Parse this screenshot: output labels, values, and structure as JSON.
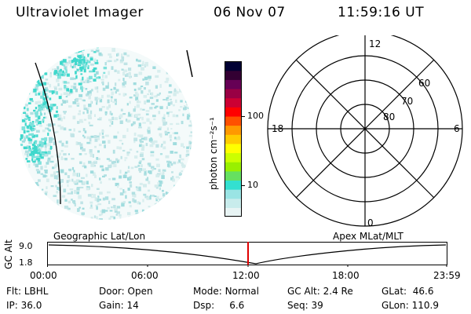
{
  "header": {
    "instrument": "Ultraviolet Imager",
    "date": "06 Nov 07",
    "time": "11:59:16 UT"
  },
  "colorbar": {
    "label": "photon cm⁻²s⁻¹",
    "ticks": [
      "100",
      "10"
    ],
    "colors": [
      "#e8f4f4",
      "#c8ecec",
      "#9ae4e4",
      "#33e0d0",
      "#66e060",
      "#99f000",
      "#ccff00",
      "#ffff00",
      "#ffcc00",
      "#ff9900",
      "#ff5000",
      "#ff0000",
      "#cc0033",
      "#990044",
      "#660055",
      "#330033",
      "#000033"
    ]
  },
  "polar_plot": {
    "mlt_labels": {
      "top": "12",
      "left": "18",
      "right": "6",
      "bottom": "0"
    },
    "lat_labels": [
      "60",
      "70",
      "80"
    ]
  },
  "timeline": {
    "ylabel": "GC Alt",
    "y_ticks": [
      "9.0",
      "1.8"
    ],
    "left_caption": "Geographic Lat/Lon",
    "right_caption": "Apex MLat/MLT",
    "x_ticks": [
      "00:00",
      "06:00",
      "12:00",
      "18:00",
      "23:59"
    ],
    "marker_color": "#e00000"
  },
  "info": {
    "row1": [
      {
        "key": "Flt:",
        "value": "LBHL"
      },
      {
        "key": "Door:",
        "value": "Open"
      },
      {
        "key": "Mode:",
        "value": "Normal"
      },
      {
        "key": "GC Alt:",
        "value": "2.4 Re"
      },
      {
        "key": "GLat:",
        "value": "46.6"
      }
    ],
    "row2": [
      {
        "key": "IP:",
        "value": "36.0"
      },
      {
        "key": "Gain:",
        "value": "14"
      },
      {
        "key": "Dsp:",
        "value": "6.6"
      },
      {
        "key": "Seq:",
        "value": "39"
      },
      {
        "key": "GLon:",
        "value": "110.9"
      }
    ]
  }
}
